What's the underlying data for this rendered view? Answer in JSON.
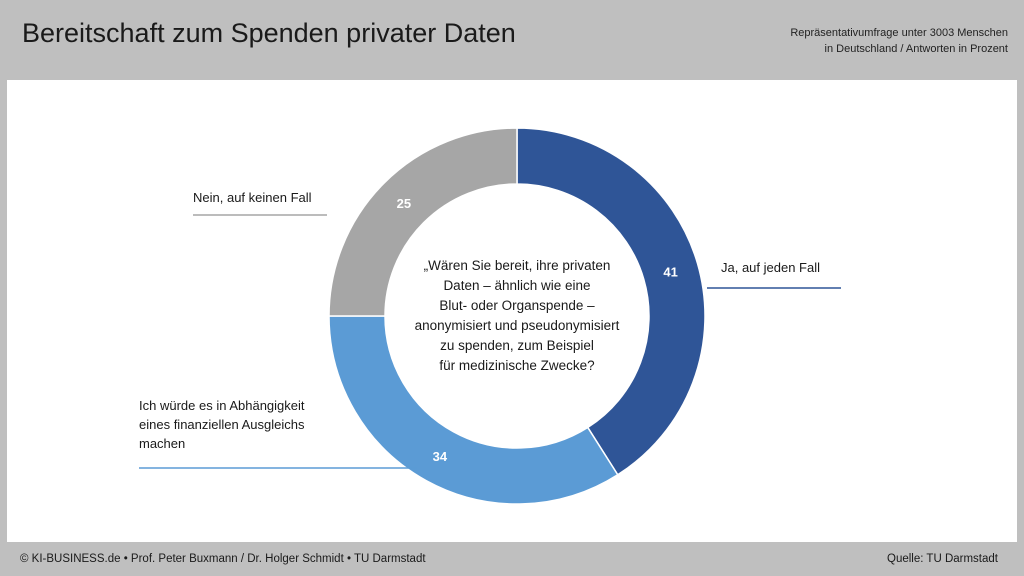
{
  "header": {
    "title": "Bereitschaft zum Spenden privater Daten",
    "subtitle_lines": [
      "Repräsentativumfrage unter 3003 Menschen",
      "in Deutschland / Antworten in Prozent"
    ]
  },
  "footer": {
    "left": "© KI-BUSINESS.de • Prof. Peter Buxmann / Dr. Holger Schmidt • TU Darmstadt",
    "right": "Quelle: TU Darmstadt"
  },
  "chart_data": {
    "type": "pie",
    "variant": "donut",
    "center_text": [
      "„Wären Sie bereit, ihre privaten",
      "Daten – ähnlich wie eine",
      "Blut- oder Organspende –",
      "anonymisiert und pseudonymisiert",
      "zu spenden, zum Beispiel",
      "für medizinische Zwecke?"
    ],
    "slices": [
      {
        "label_lines": [
          "Ja, auf jeden Fall"
        ],
        "value": 41,
        "color": "#2f5597"
      },
      {
        "label_lines": [
          "Ich würde es in Abhängigkeit",
          "eines finanziellen Ausgleichs",
          "machen"
        ],
        "value": 34,
        "color": "#5b9bd5"
      },
      {
        "label_lines": [
          "Nein, auf keinen Fall"
        ],
        "value": 25,
        "color": "#a6a6a6"
      }
    ]
  }
}
